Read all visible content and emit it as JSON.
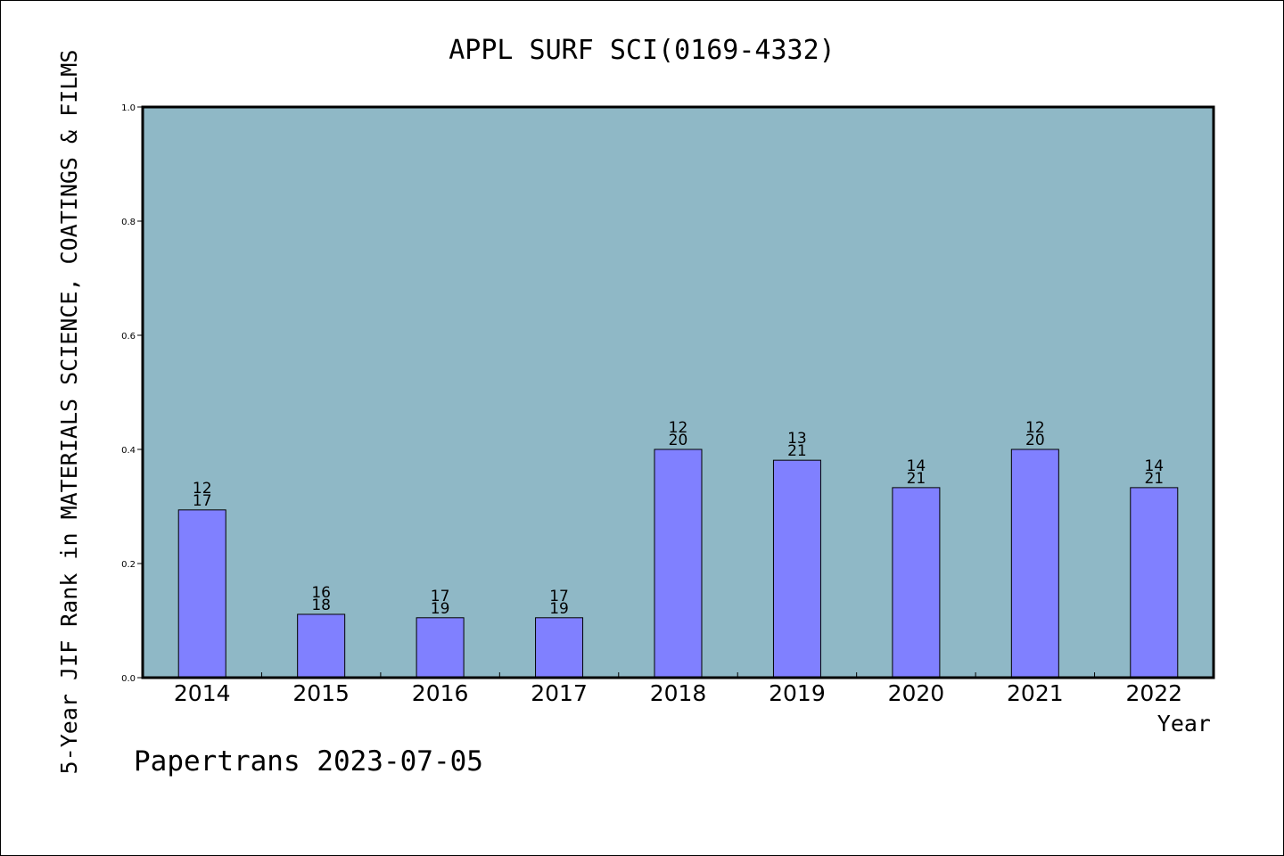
{
  "chart_data": {
    "type": "bar",
    "title": "APPL SURF SCI(0169-4332)",
    "xlabel": "Year",
    "ylabel": "5-Year JIF Rank in MATERIALS SCIENCE, COATINGS & FILMS",
    "ylim": [
      0,
      1
    ],
    "yticks": [
      "0.0",
      "0.2",
      "0.4",
      "0.6",
      "0.8",
      "1.0"
    ],
    "grid": false,
    "categories": [
      "2014",
      "2015",
      "2016",
      "2017",
      "2018",
      "2019",
      "2020",
      "2021",
      "2022"
    ],
    "values": [
      0.294,
      0.111,
      0.105,
      0.105,
      0.4,
      0.381,
      0.333,
      0.4,
      0.333
    ],
    "rank": [
      "12",
      "16",
      "17",
      "17",
      "12",
      "13",
      "14",
      "12",
      "14"
    ],
    "total": [
      "17",
      "18",
      "19",
      "19",
      "20",
      "21",
      "21",
      "20",
      "21"
    ],
    "footer": "Papertrans 2023-07-05",
    "colors": {
      "plot_bg": "#8fb8c6",
      "bar": "#8080ff"
    }
  }
}
